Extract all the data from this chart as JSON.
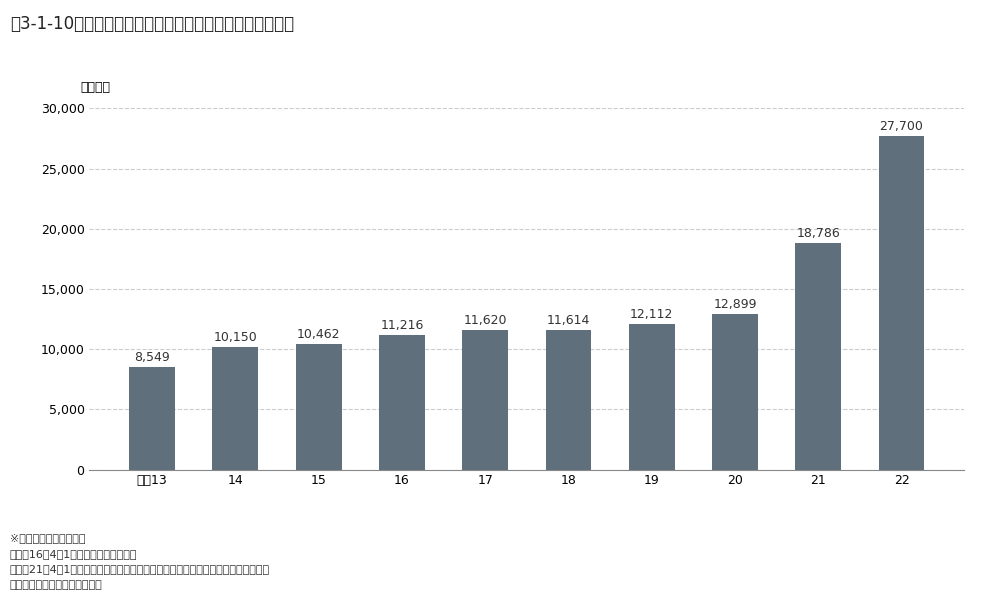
{
  "title": "図3-1-10　全国の指定引取場所における廃家電の引取台数",
  "ylabel": "（千台）",
  "categories": [
    "平成13",
    "14",
    "15",
    "16",
    "17",
    "18",
    "19",
    "20",
    "21",
    "22"
  ],
  "values": [
    8549,
    10150,
    10462,
    11216,
    11620,
    11614,
    12112,
    12899,
    18786,
    27700
  ],
  "bar_color": "#5f6f7c",
  "ylim": [
    0,
    30000
  ],
  "yticks": [
    0,
    5000,
    10000,
    15000,
    20000,
    25000,
    30000
  ],
  "background_color": "#ffffff",
  "plot_bg_color": "#ffffff",
  "grid_color": "#cccccc",
  "footnote_lines": [
    "※　家電の品目追加経緯",
    "　平成16年4月1日　電気冷凍庫を追加",
    "　平成21年4月1日　液晶式及びプラズマ式テレビジョン受信機、衣類乾燥機を追加",
    "出典：環境省、経済産業省資料"
  ],
  "title_fontsize": 12,
  "label_fontsize": 9,
  "tick_fontsize": 9,
  "footnote_fontsize": 8
}
